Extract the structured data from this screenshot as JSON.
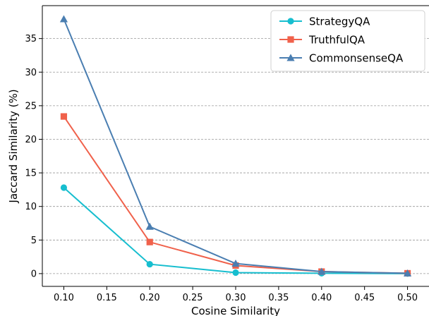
{
  "chart_data": {
    "type": "line",
    "xlabel": "Cosine Similarity",
    "ylabel": "Jaccard Similarity (%)",
    "x": [
      0.1,
      0.2,
      0.3,
      0.4,
      0.5
    ],
    "xlim": [
      0.075,
      0.525
    ],
    "ylim": [
      -1.9,
      39.9
    ],
    "x_ticks": [
      "0.10",
      "0.15",
      "0.20",
      "0.25",
      "0.30",
      "0.35",
      "0.40",
      "0.45",
      "0.50"
    ],
    "y_ticks": [
      "0",
      "5",
      "10",
      "15",
      "20",
      "25",
      "30",
      "35"
    ],
    "grid": "horizontal dashed",
    "legend_position": "top-right",
    "series": [
      {
        "name": "StrategyQA",
        "values": [
          12.8,
          1.4,
          0.15,
          0.05,
          0.0
        ],
        "color": "#17BECF",
        "marker": "circle"
      },
      {
        "name": "TruthfulQA",
        "values": [
          23.4,
          4.7,
          1.2,
          0.3,
          0.05
        ],
        "color": "#F0614B",
        "marker": "square"
      },
      {
        "name": "CommonsenseQA",
        "values": [
          37.9,
          7.0,
          1.5,
          0.3,
          0.05
        ],
        "color": "#4A7EB1",
        "marker": "triangle"
      }
    ]
  }
}
